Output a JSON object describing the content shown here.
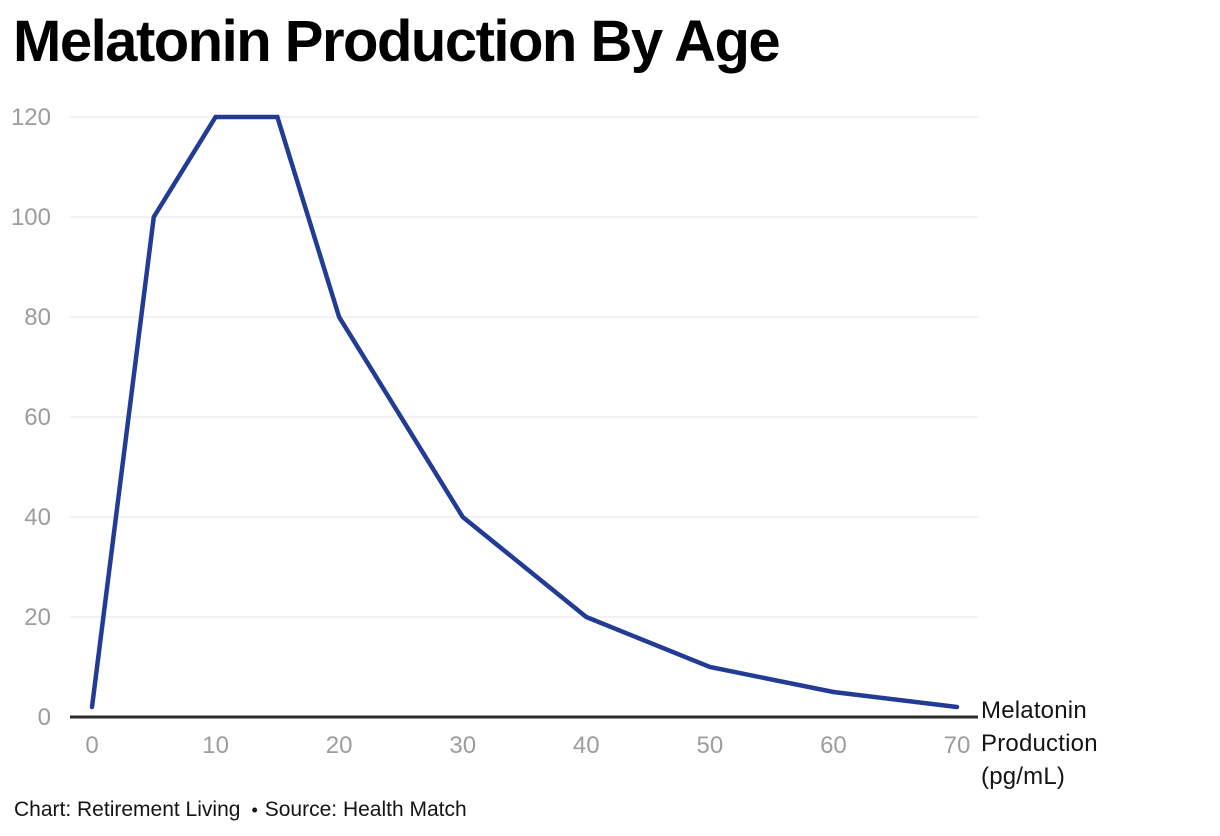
{
  "header": {
    "title": "Melatonin Production By Age"
  },
  "chart_data": {
    "type": "line",
    "title": "Melatonin Production By Age",
    "x": [
      0,
      5,
      10,
      15,
      20,
      30,
      40,
      50,
      60,
      70
    ],
    "values": [
      2,
      100,
      120,
      120,
      80,
      40,
      20,
      10,
      5,
      2
    ],
    "series_label": "Melatonin Production (pg/mL)",
    "x_ticks": [
      0,
      10,
      20,
      30,
      40,
      50,
      60,
      70
    ],
    "y_ticks": [
      0,
      20,
      40,
      60,
      80,
      100,
      120
    ],
    "xlim": [
      0,
      70
    ],
    "ylim": [
      0,
      120
    ],
    "grid": "horizontal",
    "legend": "direct-label-at-line-end"
  },
  "series_annotation": {
    "lines": [
      "Melatonin",
      "Production",
      "(pg/mL)"
    ]
  },
  "footer": {
    "chart_credit": "Chart: Retirement Living",
    "separator": "•",
    "source": "Source: Health Match"
  },
  "colors": {
    "background": "#FFFFFF",
    "line": "#223C96",
    "tick_label": "#9D9D9D",
    "grid": "#E6E6E6",
    "axis": "#2B2B2B",
    "text": "#141414",
    "title": "#000000"
  }
}
